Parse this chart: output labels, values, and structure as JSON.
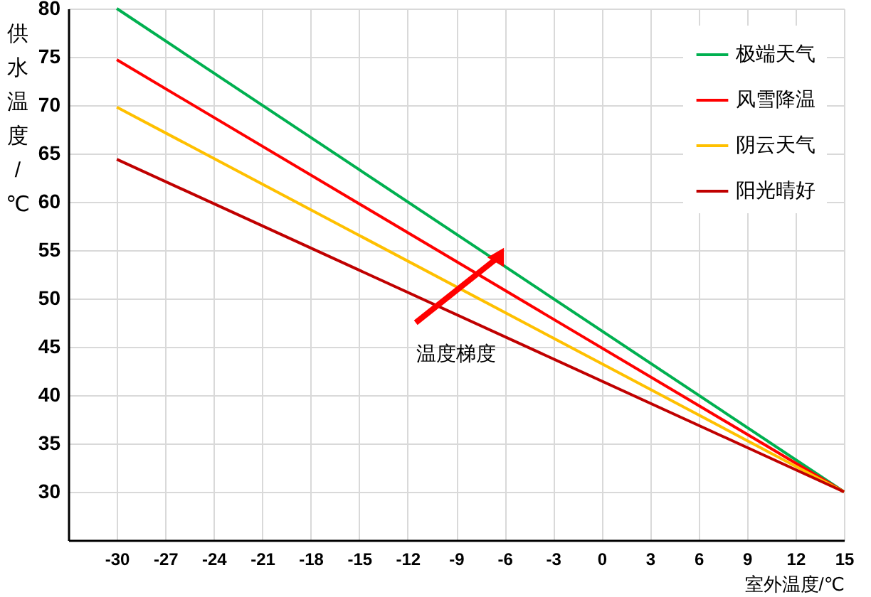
{
  "chart_data": {
    "type": "line",
    "xlabel": "室外温度/℃",
    "ylabel": "供水温度/℃",
    "x": [
      -30,
      15
    ],
    "xlim": [
      -33,
      15
    ],
    "xticks": [
      -30,
      -27,
      -24,
      -21,
      -18,
      -15,
      -12,
      -9,
      -6,
      -3,
      0,
      3,
      6,
      9,
      12,
      15
    ],
    "ylim": [
      25,
      80
    ],
    "yticks": [
      30,
      35,
      40,
      45,
      50,
      55,
      60,
      65,
      70,
      75,
      80
    ],
    "grid": true,
    "legend": "top right",
    "annotations": [
      "温度梯度"
    ],
    "series": [
      {
        "name": "极端天气",
        "color": "#00b050",
        "values": [
          80,
          30
        ]
      },
      {
        "name": "风雪降温",
        "color": "#ff0000",
        "values": [
          74.7,
          30
        ]
      },
      {
        "name": "阴云天气",
        "color": "#ffc000",
        "values": [
          69.8,
          30
        ]
      },
      {
        "name": "阳光晴好",
        "color": "#c00000",
        "values": [
          64.4,
          30
        ]
      }
    ]
  }
}
